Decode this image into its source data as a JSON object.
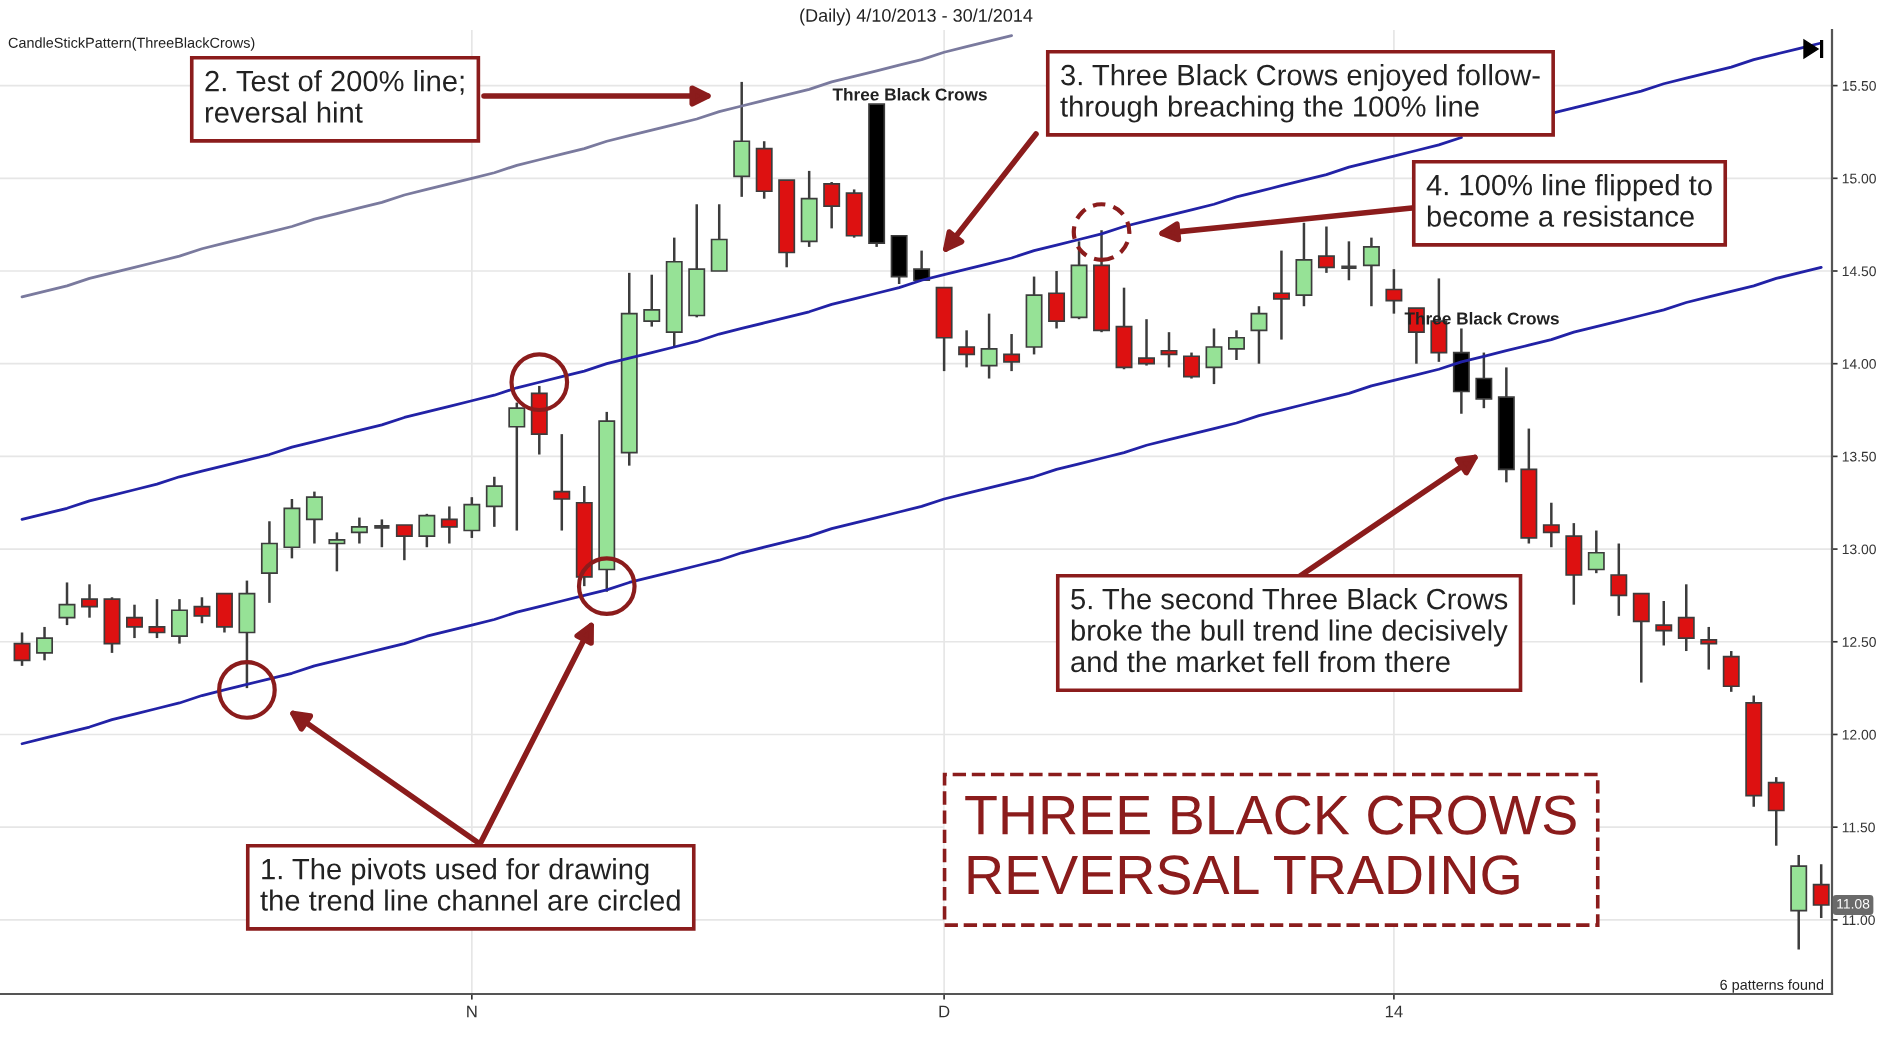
{
  "chart_data": {
    "type": "candlestick",
    "title": "(Daily) 4/10/2013 - 30/1/2014",
    "categories": [
      null,
      null,
      null,
      null,
      null,
      null,
      null,
      null,
      null,
      null,
      null,
      null,
      null,
      null,
      null,
      null,
      null,
      null,
      null,
      null,
      "N",
      null,
      null,
      null,
      null,
      null,
      null,
      null,
      null,
      null,
      null,
      null,
      null,
      null,
      null,
      null,
      null,
      null,
      null,
      null,
      null,
      "D",
      null,
      null,
      null,
      null,
      null,
      null,
      null,
      null,
      null,
      null,
      null,
      null,
      null,
      null,
      null,
      null,
      null,
      null,
      null,
      "14",
      null,
      null,
      null,
      null,
      null,
      null,
      null,
      null,
      null,
      null,
      null,
      null,
      null,
      null,
      null,
      null,
      null,
      null,
      null
    ],
    "ohlc": [
      [
        12.49,
        12.55,
        12.37,
        12.4
      ],
      [
        12.44,
        12.58,
        12.4,
        12.52
      ],
      [
        12.63,
        12.82,
        12.59,
        12.7
      ],
      [
        12.73,
        12.81,
        12.63,
        12.69
      ],
      [
        12.73,
        12.74,
        12.44,
        12.49
      ],
      [
        12.63,
        12.7,
        12.52,
        12.58
      ],
      [
        12.58,
        12.73,
        12.52,
        12.55
      ],
      [
        12.53,
        12.73,
        12.49,
        12.67
      ],
      [
        12.69,
        12.74,
        12.6,
        12.64
      ],
      [
        12.76,
        12.76,
        12.55,
        12.58
      ],
      [
        12.55,
        12.83,
        12.25,
        12.76
      ],
      [
        12.87,
        13.15,
        12.71,
        13.03
      ],
      [
        13.01,
        13.27,
        12.95,
        13.22
      ],
      [
        13.16,
        13.31,
        13.03,
        13.28
      ],
      [
        13.03,
        13.09,
        12.88,
        13.05
      ],
      [
        13.09,
        13.17,
        13.03,
        13.12
      ],
      [
        13.12,
        13.16,
        13.01,
        13.12
      ],
      [
        13.13,
        13.13,
        12.94,
        13.07
      ],
      [
        13.07,
        13.19,
        13.01,
        13.18
      ],
      [
        13.16,
        13.23,
        13.03,
        13.12
      ],
      [
        13.1,
        13.28,
        13.06,
        13.24
      ],
      [
        13.23,
        13.39,
        13.12,
        13.34
      ],
      [
        13.66,
        13.79,
        13.1,
        13.76
      ],
      [
        13.84,
        13.88,
        13.51,
        13.62
      ],
      [
        13.31,
        13.62,
        13.1,
        13.27
      ],
      [
        13.25,
        13.34,
        12.8,
        12.85
      ],
      [
        12.89,
        13.74,
        12.77,
        13.69
      ],
      [
        13.52,
        14.49,
        13.45,
        14.27
      ],
      [
        14.23,
        14.48,
        14.2,
        14.29
      ],
      [
        14.17,
        14.68,
        14.09,
        14.55
      ],
      [
        14.26,
        14.86,
        14.25,
        14.51
      ],
      [
        14.5,
        14.86,
        14.5,
        14.67
      ],
      [
        15.01,
        15.52,
        14.9,
        15.2
      ],
      [
        15.16,
        15.2,
        14.89,
        14.93
      ],
      [
        14.99,
        14.99,
        14.52,
        14.6
      ],
      [
        14.66,
        15.04,
        14.63,
        14.89
      ],
      [
        14.97,
        14.98,
        14.73,
        14.85
      ],
      [
        14.92,
        14.94,
        14.68,
        14.69
      ],
      [
        15.4,
        15.4,
        14.63,
        14.65
      ],
      [
        14.69,
        14.69,
        14.43,
        14.47
      ],
      [
        14.51,
        14.61,
        14.45,
        14.45
      ],
      [
        14.41,
        14.41,
        13.96,
        14.14
      ],
      [
        14.09,
        14.18,
        13.98,
        14.05
      ],
      [
        13.99,
        14.27,
        13.92,
        14.08
      ],
      [
        14.05,
        14.16,
        13.96,
        14.01
      ],
      [
        14.09,
        14.47,
        14.05,
        14.37
      ],
      [
        14.38,
        14.5,
        14.19,
        14.23
      ],
      [
        14.25,
        14.66,
        14.24,
        14.53
      ],
      [
        14.53,
        14.72,
        14.17,
        14.18
      ],
      [
        14.2,
        14.41,
        13.97,
        13.98
      ],
      [
        14.03,
        14.24,
        13.99,
        14.0
      ],
      [
        14.07,
        14.17,
        13.98,
        14.05
      ],
      [
        14.04,
        14.06,
        13.92,
        13.93
      ],
      [
        13.98,
        14.19,
        13.89,
        14.09
      ],
      [
        14.08,
        14.18,
        14.02,
        14.14
      ],
      [
        14.18,
        14.31,
        14.0,
        14.27
      ],
      [
        14.38,
        14.61,
        14.13,
        14.35
      ],
      [
        14.37,
        14.76,
        14.31,
        14.56
      ],
      [
        14.58,
        14.74,
        14.49,
        14.52
      ],
      [
        14.52,
        14.66,
        14.45,
        14.52
      ],
      [
        14.53,
        14.68,
        14.31,
        14.63
      ],
      [
        14.4,
        14.51,
        14.27,
        14.34
      ],
      [
        14.3,
        14.3,
        14.0,
        14.17
      ],
      [
        14.23,
        14.46,
        14.01,
        14.06
      ],
      [
        14.06,
        14.19,
        13.73,
        13.85
      ],
      [
        13.92,
        14.06,
        13.76,
        13.81
      ],
      [
        13.82,
        13.98,
        13.36,
        13.43
      ],
      [
        13.43,
        13.65,
        13.03,
        13.06
      ],
      [
        13.13,
        13.25,
        13.01,
        13.09
      ],
      [
        13.07,
        13.14,
        12.7,
        12.86
      ],
      [
        12.89,
        13.1,
        12.87,
        12.98
      ],
      [
        12.86,
        13.03,
        12.64,
        12.75
      ],
      [
        12.76,
        12.76,
        12.28,
        12.61
      ],
      [
        12.59,
        12.72,
        12.48,
        12.56
      ],
      [
        12.63,
        12.81,
        12.45,
        12.52
      ],
      [
        12.51,
        12.58,
        12.35,
        12.49
      ],
      [
        12.42,
        12.45,
        12.23,
        12.26
      ],
      [
        12.17,
        12.21,
        11.61,
        11.67
      ],
      [
        11.74,
        11.77,
        11.4,
        11.59
      ],
      [
        11.05,
        11.35,
        10.84,
        11.29
      ],
      [
        11.19,
        11.3,
        11.01,
        11.08
      ]
    ],
    "colors": [
      "#dd1111",
      "#96e296",
      "#96e296",
      "#dd1111",
      "#dd1111",
      "#dd1111",
      "#dd1111",
      "#96e296",
      "#dd1111",
      "#dd1111",
      "#96e296",
      "#96e296",
      "#96e296",
      "#96e296",
      "#96e296",
      "#96e296",
      "#404040",
      "#dd1111",
      "#96e296",
      "#dd1111",
      "#96e296",
      "#96e296",
      "#96e296",
      "#dd1111",
      "#dd1111",
      "#dd1111",
      "#96e296",
      "#96e296",
      "#96e296",
      "#96e296",
      "#96e296",
      "#96e296",
      "#96e296",
      "#dd1111",
      "#dd1111",
      "#96e296",
      "#dd1111",
      "#dd1111",
      "#000000",
      "#000000",
      "#000000",
      "#dd1111",
      "#dd1111",
      "#96e296",
      "#dd1111",
      "#96e296",
      "#dd1111",
      "#96e296",
      "#dd1111",
      "#dd1111",
      "#dd1111",
      "#dd1111",
      "#dd1111",
      "#96e296",
      "#96e296",
      "#96e296",
      "#dd1111",
      "#96e296",
      "#dd1111",
      "#404040",
      "#96e296",
      "#dd1111",
      "#dd1111",
      "#dd1111",
      "#000000",
      "#000000",
      "#000000",
      "#dd1111",
      "#dd1111",
      "#dd1111",
      "#96e296",
      "#dd1111",
      "#dd1111",
      "#dd1111",
      "#dd1111",
      "#dd1111",
      "#dd1111",
      "#dd1111",
      "#dd1111",
      "#96e296",
      "#dd1111"
    ],
    "series": [
      {
        "type": "line",
        "color": "#2222a6",
        "values": [
          13.16,
          13.19,
          13.22,
          13.26,
          13.29,
          13.32,
          13.35,
          13.39,
          13.42,
          13.45,
          13.48,
          13.51,
          13.55,
          13.58,
          13.61,
          13.64,
          13.67,
          13.71,
          13.74,
          13.77,
          13.8,
          13.83,
          13.87,
          13.9,
          13.93,
          13.96,
          14.0,
          14.03,
          14.06,
          14.09,
          14.12,
          14.16,
          14.19,
          14.22,
          14.25,
          14.28,
          14.32,
          14.35,
          14.38,
          14.41,
          14.45,
          14.48,
          14.51,
          14.54,
          14.57,
          14.61,
          14.64,
          14.67,
          14.7,
          14.74,
          14.77,
          14.8,
          14.83,
          14.86,
          14.9,
          14.93,
          14.96,
          14.99,
          15.02,
          15.06,
          15.09,
          15.12,
          15.15,
          15.18,
          15.22,
          null,
          null,
          null,
          15.35,
          15.38,
          15.41,
          15.44,
          15.47,
          15.51,
          15.54,
          15.57,
          15.6,
          15.64,
          15.67,
          15.7,
          15.73
        ]
      },
      {
        "type": "line",
        "color": "#2222a6",
        "values": [
          11.95,
          11.98,
          12.01,
          12.04,
          12.08,
          12.11,
          12.14,
          12.17,
          12.21,
          12.24,
          12.27,
          12.3,
          12.33,
          12.37,
          12.4,
          12.43,
          12.46,
          12.49,
          12.53,
          12.56,
          12.59,
          12.62,
          12.66,
          12.69,
          12.72,
          12.75,
          12.78,
          12.82,
          12.85,
          12.88,
          12.91,
          12.94,
          12.98,
          13.01,
          13.04,
          13.07,
          13.11,
          13.14,
          13.17,
          13.2,
          13.23,
          13.27,
          13.3,
          13.33,
          13.36,
          13.39,
          13.43,
          13.46,
          13.49,
          13.52,
          13.56,
          13.59,
          13.62,
          13.65,
          13.68,
          13.72,
          13.75,
          13.78,
          13.81,
          13.84,
          13.88,
          13.91,
          13.94,
          13.97,
          14.01,
          14.04,
          14.07,
          14.1,
          14.13,
          14.17,
          14.2,
          14.23,
          14.26,
          14.29,
          14.33,
          14.36,
          14.39,
          14.42,
          14.46,
          14.49,
          14.52
        ]
      },
      {
        "type": "line",
        "color": "#7a7a9e",
        "values": [
          14.36,
          14.39,
          14.42,
          14.46,
          14.49,
          14.52,
          14.55,
          14.58,
          14.62,
          14.65,
          14.68,
          14.71,
          14.74,
          14.78,
          14.81,
          14.84,
          14.87,
          14.91,
          14.94,
          14.97,
          15.0,
          15.03,
          15.07,
          15.1,
          15.13,
          15.16,
          15.2,
          15.23,
          15.26,
          15.29,
          15.32,
          15.36,
          15.39,
          15.42,
          15.45,
          15.48,
          15.52,
          15.55,
          15.58,
          15.61,
          15.64,
          15.68,
          15.71,
          15.74,
          15.77,
          null,
          null,
          null,
          null,
          null,
          null,
          null,
          null,
          null,
          null,
          null,
          null,
          null,
          null,
          null,
          null,
          null,
          null,
          null,
          null,
          null,
          null,
          null,
          null,
          null,
          null,
          null,
          null,
          null,
          null,
          null,
          null,
          null,
          null,
          null,
          null
        ]
      },
      {
        "type": "scatter",
        "color": "#8b1c1c",
        "marker": "circle",
        "values": [
          null,
          null,
          null,
          null,
          null,
          null,
          null,
          null,
          null,
          null,
          12.24,
          null,
          null,
          null,
          null,
          null,
          null,
          null,
          null,
          null,
          null,
          null,
          null,
          13.9,
          null,
          null,
          12.8,
          null,
          null,
          null,
          null,
          null,
          null,
          null,
          null,
          null,
          null,
          null,
          null,
          null,
          null,
          null,
          null,
          null,
          null,
          null,
          null,
          null,
          null,
          null,
          null,
          null,
          null,
          null,
          null,
          null,
          null,
          null,
          null,
          null,
          null,
          null,
          null,
          null,
          null,
          null,
          null,
          null,
          null,
          null,
          null,
          null,
          null,
          null,
          null,
          null,
          null,
          null,
          null,
          null,
          null
        ]
      },
      {
        "type": "scatter",
        "color": "#8b1c1c",
        "marker": "circle",
        "line_style": "dashed",
        "values": [
          null,
          null,
          null,
          null,
          null,
          null,
          null,
          null,
          null,
          null,
          null,
          null,
          null,
          null,
          null,
          null,
          null,
          null,
          null,
          null,
          null,
          null,
          null,
          null,
          null,
          null,
          null,
          null,
          null,
          null,
          null,
          null,
          null,
          null,
          null,
          null,
          null,
          null,
          null,
          null,
          null,
          null,
          null,
          null,
          null,
          null,
          null,
          null,
          14.71,
          null,
          null,
          null,
          null,
          null,
          null,
          null,
          null,
          null,
          null,
          null,
          null,
          null,
          null,
          null,
          null,
          null,
          null,
          null,
          null,
          null,
          null,
          null,
          null,
          null,
          null,
          null,
          null,
          null,
          null,
          null,
          null
        ]
      }
    ],
    "ylim": [
      10.6,
      15.8
    ],
    "yticks": [
      {
        "value": 11,
        "label": "11.00"
      },
      {
        "value": 11.5,
        "label": "11.50"
      },
      {
        "value": 12,
        "label": "12.00"
      },
      {
        "value": 12.5,
        "label": "12.50"
      },
      {
        "value": 13,
        "label": "13.00"
      },
      {
        "value": 13.5,
        "label": "13.50"
      },
      {
        "value": 14,
        "label": "14.00"
      },
      {
        "value": 14.5,
        "label": "14.50"
      },
      {
        "value": 15,
        "label": "15.00"
      },
      {
        "value": 15.5,
        "label": "15.50"
      }
    ],
    "grid": true,
    "annotations": [
      "CandleStickPattern(ThreeBlackCrows)",
      "2. Test of 200% line;\nreversal hint",
      "Three Black Crows",
      "3. Three Black Crows enjoyed follow-\nthrough breaching the 100% line",
      "4. 100% line flipped to\nbecome a resistance",
      "Three Black Crows",
      "5. The second Three Black Crows\nbroke the bull trend line decisively\nand the market fell from there",
      "1. The pivots used for drawing\nthe trend line channel are circled",
      "THREE BLACK CROWS\nREVERSAL TRADING",
      "6 patterns found",
      {
        "text": "11.08",
        "y": 11.08
      }
    ]
  }
}
